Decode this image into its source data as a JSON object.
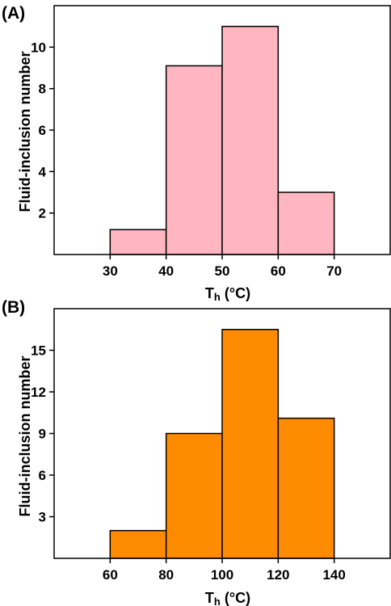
{
  "chart_data": [
    {
      "type": "bar",
      "panel_label": "(A)",
      "bins": [
        [
          30,
          40
        ],
        [
          40,
          50
        ],
        [
          50,
          60
        ],
        [
          60,
          70
        ]
      ],
      "values": [
        1.2,
        9.1,
        11,
        3
      ],
      "xticks": [
        30,
        40,
        50,
        60,
        70
      ],
      "yticks": [
        2,
        4,
        6,
        8,
        10
      ],
      "xlim": [
        20,
        80
      ],
      "ylim": [
        0,
        12
      ],
      "xlabel_main": "T",
      "xlabel_sub": "h",
      "xlabel_unit": " (°C)",
      "ylabel": "Fluid-inclusion number",
      "bar_color": "#ffb6c1",
      "grid": false
    },
    {
      "type": "bar",
      "panel_label": "(B)",
      "bins": [
        [
          60,
          80
        ],
        [
          80,
          100
        ],
        [
          100,
          120
        ],
        [
          120,
          140
        ]
      ],
      "values": [
        2,
        9,
        16.5,
        10.1
      ],
      "xticks": [
        60,
        80,
        100,
        120,
        140
      ],
      "yticks": [
        3,
        6,
        9,
        12,
        15
      ],
      "xlim": [
        40,
        160
      ],
      "ylim": [
        0,
        18
      ],
      "xlabel_main": "T",
      "xlabel_sub": "h",
      "xlabel_unit": " (°C)",
      "ylabel": "Fluid-inclusion number",
      "bar_color": "#ff8c00",
      "grid": false
    }
  ]
}
